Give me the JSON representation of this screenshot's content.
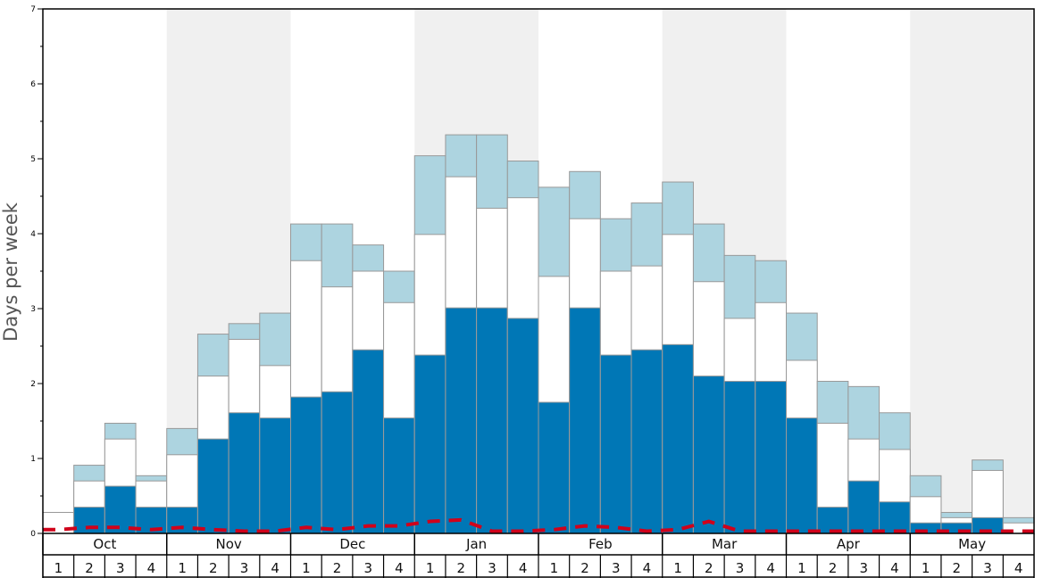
{
  "chart_data": {
    "type": "bar",
    "ylabel": "Days per week",
    "ylim": [
      0,
      7
    ],
    "yticks": [
      "0",
      "1",
      "2",
      "3",
      "4",
      "5",
      "6",
      "7"
    ],
    "months": [
      "Oct",
      "Nov",
      "Dec",
      "Jan",
      "Feb",
      "Mar",
      "Apr",
      "May"
    ],
    "week_labels": [
      "1",
      "2",
      "3",
      "4"
    ],
    "colors": {
      "dark": "#0077b6",
      "light": "#add4e0",
      "white": "#ffffff",
      "shade": "#f0f0f0",
      "dashed_line": "#d0021b"
    },
    "series": [
      {
        "values": [
          0.0,
          0.35,
          0.63,
          0.35,
          0.35,
          1.26,
          1.61,
          1.54,
          1.82,
          1.89,
          2.45,
          1.54,
          2.38,
          3.01,
          3.01,
          2.87,
          1.75,
          3.01,
          2.38,
          2.45,
          2.52,
          2.1,
          2.03,
          2.03,
          1.54,
          0.35,
          0.7,
          0.42,
          0.14,
          0.14,
          0.21,
          0.0
        ]
      },
      {
        "values": [
          0.28,
          0.7,
          1.26,
          0.7,
          1.05,
          2.1,
          2.59,
          2.24,
          3.64,
          3.29,
          3.5,
          3.08,
          3.99,
          4.76,
          4.34,
          4.48,
          3.43,
          4.2,
          3.5,
          3.57,
          3.99,
          3.36,
          2.87,
          3.08,
          2.31,
          1.47,
          1.26,
          1.12,
          0.49,
          0.21,
          0.84,
          0.14
        ]
      },
      {
        "values": [
          0.28,
          0.91,
          1.47,
          0.77,
          1.4,
          2.66,
          2.8,
          2.94,
          4.13,
          4.13,
          3.85,
          3.5,
          5.04,
          5.32,
          5.32,
          4.97,
          4.62,
          4.83,
          4.2,
          4.41,
          4.69,
          4.13,
          3.71,
          3.64,
          2.94,
          2.03,
          1.96,
          1.61,
          0.77,
          0.28,
          0.98,
          0.21
        ]
      },
      {
        "style": "dashed",
        "values": [
          0.05,
          0.08,
          0.08,
          0.05,
          0.08,
          0.05,
          0.03,
          0.03,
          0.08,
          0.05,
          0.1,
          0.1,
          0.16,
          0.18,
          0.03,
          0.03,
          0.05,
          0.1,
          0.08,
          0.03,
          0.05,
          0.16,
          0.03,
          0.03,
          0.03,
          0.03,
          0.03,
          0.03,
          0.03,
          0.03,
          0.03,
          0.03
        ]
      }
    ]
  }
}
